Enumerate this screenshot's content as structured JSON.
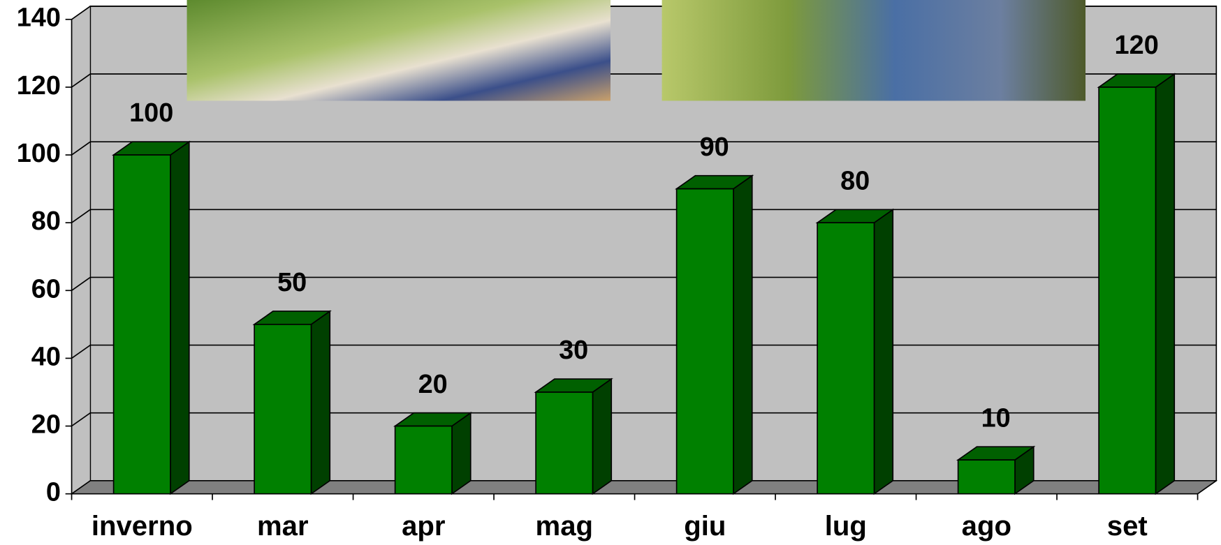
{
  "chart_data": {
    "type": "bar3d",
    "categories": [
      "inverno",
      "mar",
      "apr",
      "mag",
      "giu",
      "lug",
      "ago",
      "set"
    ],
    "values": [
      100,
      50,
      20,
      30,
      90,
      80,
      10,
      120
    ],
    "color": "#008000",
    "ylim": [
      0,
      140
    ],
    "yticks": [
      0,
      20,
      40,
      60,
      80,
      100,
      120,
      140
    ],
    "grid": true
  }
}
